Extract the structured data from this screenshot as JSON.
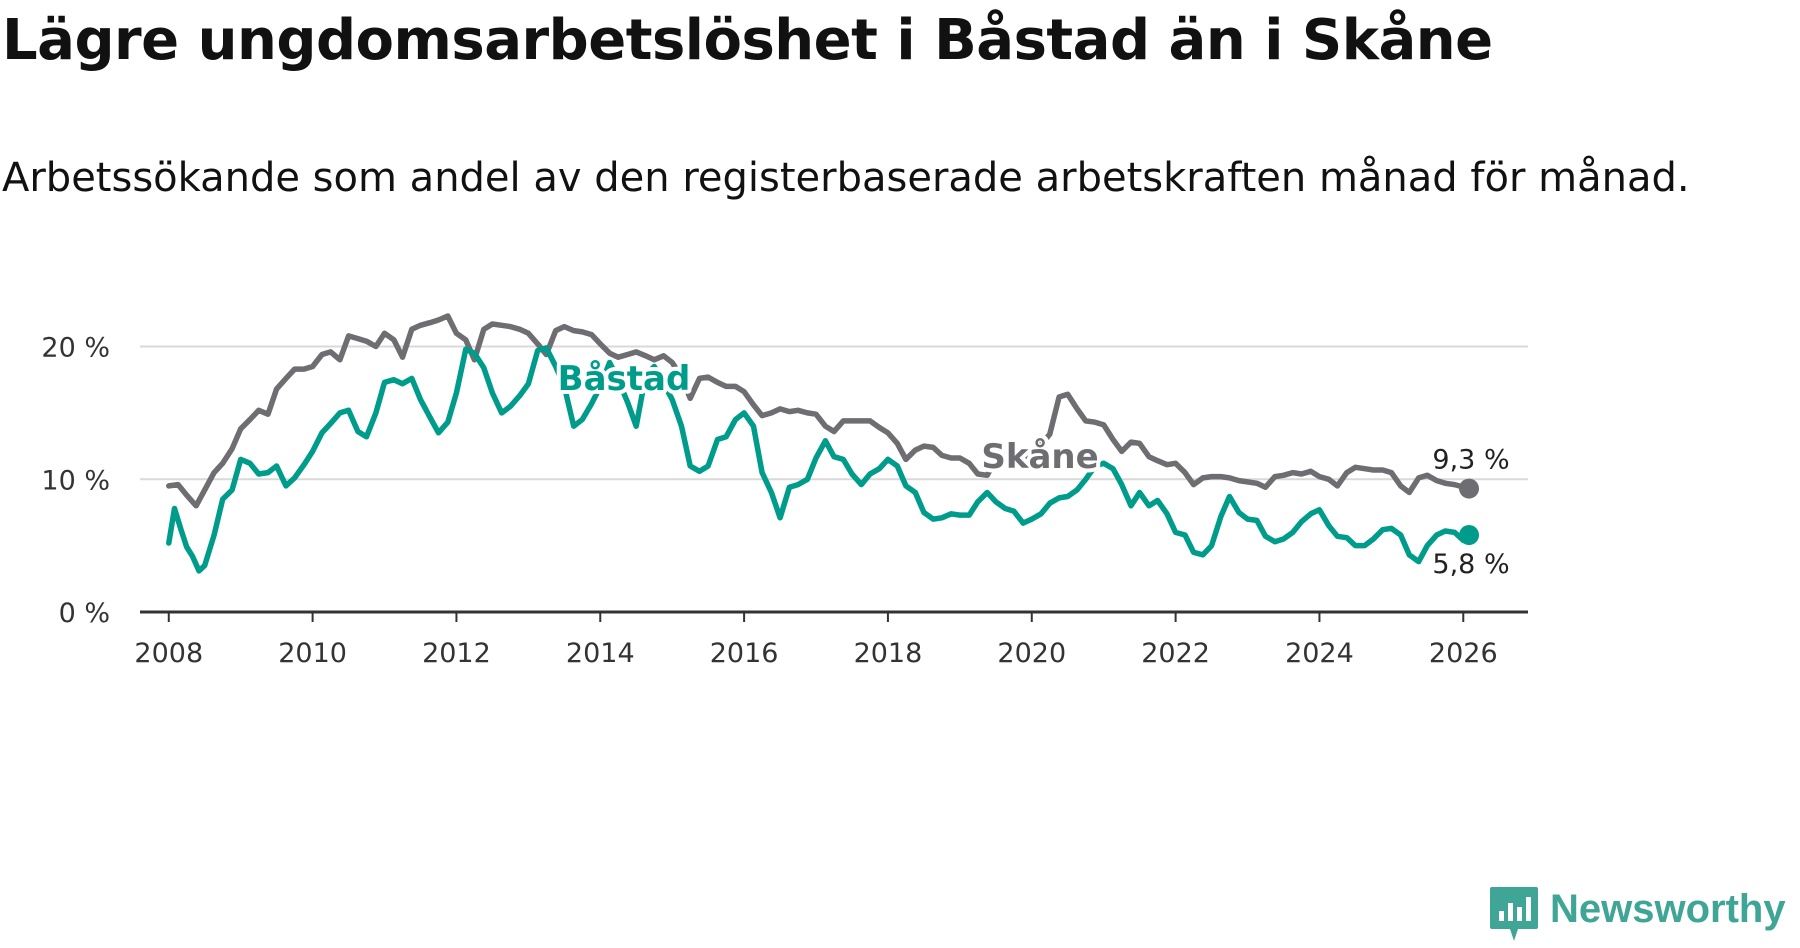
{
  "title": "Lägre ungdomsarbetslöshet i Båstad än i Skåne",
  "subtitle": "Arbetssökande som andel av den registerbaserade arbetskraften månad för månad.",
  "brand": {
    "name": "Newsworthy",
    "icon": "newsworthy-chart-icon",
    "color": "#3fa596"
  },
  "chart_data": {
    "type": "line",
    "title": "Lägre ungdomsarbetslöshet i Båstad än i Skåne",
    "xlabel": "",
    "ylabel": "",
    "xlim": [
      2007.6,
      2026.9
    ],
    "ylim": [
      0,
      22
    ],
    "x_ticks": [
      2008,
      2010,
      2012,
      2014,
      2016,
      2018,
      2020,
      2022,
      2024,
      2026
    ],
    "x_tick_labels": [
      "2008",
      "2010",
      "2012",
      "2014",
      "2016",
      "2018",
      "2020",
      "2022",
      "2024",
      "2026"
    ],
    "y_ticks": [
      0,
      10,
      20
    ],
    "y_tick_labels": [
      "0 %",
      "10 %",
      "20 %"
    ],
    "grid": true,
    "series": [
      {
        "name": "Skåne",
        "label": "Skåne",
        "color": "#6e6d72",
        "end_label": "9,3 %",
        "points": [
          [
            2008.0,
            9.5
          ],
          [
            2008.13,
            9.6
          ],
          [
            2008.25,
            8.8
          ],
          [
            2008.38,
            8.0
          ],
          [
            2008.5,
            9.2
          ],
          [
            2008.63,
            10.5
          ],
          [
            2008.75,
            11.2
          ],
          [
            2008.88,
            12.3
          ],
          [
            2009.0,
            13.8
          ],
          [
            2009.13,
            14.5
          ],
          [
            2009.25,
            15.2
          ],
          [
            2009.38,
            14.9
          ],
          [
            2009.5,
            16.8
          ],
          [
            2009.63,
            17.6
          ],
          [
            2009.75,
            18.3
          ],
          [
            2009.88,
            18.3
          ],
          [
            2010.0,
            18.5
          ],
          [
            2010.13,
            19.4
          ],
          [
            2010.25,
            19.6
          ],
          [
            2010.38,
            19.0
          ],
          [
            2010.5,
            20.8
          ],
          [
            2010.63,
            20.6
          ],
          [
            2010.75,
            20.4
          ],
          [
            2010.88,
            20.0
          ],
          [
            2011.0,
            21.0
          ],
          [
            2011.13,
            20.5
          ],
          [
            2011.25,
            19.2
          ],
          [
            2011.38,
            21.3
          ],
          [
            2011.5,
            21.6
          ],
          [
            2011.63,
            21.8
          ],
          [
            2011.75,
            22.0
          ],
          [
            2011.88,
            22.3
          ],
          [
            2012.0,
            21.0
          ],
          [
            2012.13,
            20.5
          ],
          [
            2012.25,
            19.0
          ],
          [
            2012.38,
            21.3
          ],
          [
            2012.5,
            21.7
          ],
          [
            2012.63,
            21.6
          ],
          [
            2012.75,
            21.5
          ],
          [
            2012.88,
            21.3
          ],
          [
            2013.0,
            21.0
          ],
          [
            2013.13,
            20.2
          ],
          [
            2013.25,
            19.4
          ],
          [
            2013.38,
            21.2
          ],
          [
            2013.5,
            21.5
          ],
          [
            2013.63,
            21.2
          ],
          [
            2013.75,
            21.1
          ],
          [
            2013.88,
            20.9
          ],
          [
            2014.0,
            20.2
          ],
          [
            2014.13,
            19.5
          ],
          [
            2014.25,
            19.2
          ],
          [
            2014.38,
            19.4
          ],
          [
            2014.5,
            19.6
          ],
          [
            2014.63,
            19.3
          ],
          [
            2014.75,
            19.0
          ],
          [
            2014.88,
            19.3
          ],
          [
            2015.0,
            18.8
          ],
          [
            2015.13,
            17.7
          ],
          [
            2015.25,
            16.1
          ],
          [
            2015.38,
            17.6
          ],
          [
            2015.5,
            17.7
          ],
          [
            2015.63,
            17.3
          ],
          [
            2015.75,
            17.0
          ],
          [
            2015.88,
            17.0
          ],
          [
            2016.0,
            16.6
          ],
          [
            2016.13,
            15.6
          ],
          [
            2016.25,
            14.8
          ],
          [
            2016.38,
            15.0
          ],
          [
            2016.5,
            15.3
          ],
          [
            2016.63,
            15.1
          ],
          [
            2016.75,
            15.2
          ],
          [
            2016.88,
            15.0
          ],
          [
            2017.0,
            14.9
          ],
          [
            2017.13,
            14.0
          ],
          [
            2017.25,
            13.6
          ],
          [
            2017.38,
            14.4
          ],
          [
            2017.5,
            14.4
          ],
          [
            2017.63,
            14.4
          ],
          [
            2017.75,
            14.4
          ],
          [
            2017.88,
            13.9
          ],
          [
            2018.0,
            13.5
          ],
          [
            2018.13,
            12.7
          ],
          [
            2018.25,
            11.5
          ],
          [
            2018.38,
            12.2
          ],
          [
            2018.5,
            12.5
          ],
          [
            2018.63,
            12.4
          ],
          [
            2018.75,
            11.8
          ],
          [
            2018.88,
            11.6
          ],
          [
            2019.0,
            11.6
          ],
          [
            2019.13,
            11.2
          ],
          [
            2019.25,
            10.4
          ],
          [
            2019.38,
            10.3
          ],
          [
            2019.5,
            11.5
          ],
          [
            2019.63,
            11.8
          ],
          [
            2019.75,
            12.2
          ],
          [
            2019.88,
            11.6
          ],
          [
            2020.0,
            12.0
          ],
          [
            2020.13,
            12.6
          ],
          [
            2020.25,
            13.4
          ],
          [
            2020.38,
            16.2
          ],
          [
            2020.5,
            16.4
          ],
          [
            2020.63,
            15.3
          ],
          [
            2020.75,
            14.4
          ],
          [
            2020.88,
            14.3
          ],
          [
            2021.0,
            14.1
          ],
          [
            2021.13,
            13.0
          ],
          [
            2021.25,
            12.1
          ],
          [
            2021.38,
            12.8
          ],
          [
            2021.5,
            12.7
          ],
          [
            2021.63,
            11.7
          ],
          [
            2021.75,
            11.4
          ],
          [
            2021.88,
            11.1
          ],
          [
            2022.0,
            11.2
          ],
          [
            2022.13,
            10.5
          ],
          [
            2022.25,
            9.6
          ],
          [
            2022.38,
            10.1
          ],
          [
            2022.5,
            10.2
          ],
          [
            2022.63,
            10.2
          ],
          [
            2022.75,
            10.1
          ],
          [
            2022.88,
            9.9
          ],
          [
            2023.0,
            9.8
          ],
          [
            2023.13,
            9.7
          ],
          [
            2023.25,
            9.4
          ],
          [
            2023.38,
            10.2
          ],
          [
            2023.5,
            10.3
          ],
          [
            2023.63,
            10.5
          ],
          [
            2023.75,
            10.4
          ],
          [
            2023.88,
            10.6
          ],
          [
            2024.0,
            10.2
          ],
          [
            2024.13,
            10.0
          ],
          [
            2024.25,
            9.5
          ],
          [
            2024.38,
            10.5
          ],
          [
            2024.5,
            10.9
          ],
          [
            2024.63,
            10.8
          ],
          [
            2024.75,
            10.7
          ],
          [
            2024.88,
            10.7
          ],
          [
            2025.0,
            10.5
          ],
          [
            2025.13,
            9.5
          ],
          [
            2025.25,
            9.0
          ],
          [
            2025.38,
            10.1
          ],
          [
            2025.5,
            10.3
          ],
          [
            2025.63,
            9.9
          ],
          [
            2025.75,
            9.7
          ],
          [
            2025.88,
            9.6
          ],
          [
            2026.08,
            9.3
          ]
        ]
      },
      {
        "name": "Båstad",
        "label": "Båstad",
        "color": "#009c8b",
        "end_label": "5,8 %",
        "points": [
          [
            2008.0,
            5.2
          ],
          [
            2008.08,
            7.8
          ],
          [
            2008.17,
            6.2
          ],
          [
            2008.25,
            4.9
          ],
          [
            2008.33,
            4.2
          ],
          [
            2008.42,
            3.1
          ],
          [
            2008.5,
            3.5
          ],
          [
            2008.63,
            5.8
          ],
          [
            2008.75,
            8.5
          ],
          [
            2008.88,
            9.2
          ],
          [
            2009.0,
            11.5
          ],
          [
            2009.13,
            11.2
          ],
          [
            2009.25,
            10.4
          ],
          [
            2009.38,
            10.5
          ],
          [
            2009.5,
            11.0
          ],
          [
            2009.63,
            9.5
          ],
          [
            2009.75,
            10.1
          ],
          [
            2009.88,
            11.1
          ],
          [
            2010.0,
            12.1
          ],
          [
            2010.13,
            13.5
          ],
          [
            2010.25,
            14.2
          ],
          [
            2010.38,
            15.0
          ],
          [
            2010.5,
            15.2
          ],
          [
            2010.63,
            13.6
          ],
          [
            2010.75,
            13.2
          ],
          [
            2010.88,
            15.0
          ],
          [
            2011.0,
            17.3
          ],
          [
            2011.13,
            17.5
          ],
          [
            2011.25,
            17.2
          ],
          [
            2011.38,
            17.6
          ],
          [
            2011.5,
            16.0
          ],
          [
            2011.63,
            14.7
          ],
          [
            2011.75,
            13.5
          ],
          [
            2011.88,
            14.3
          ],
          [
            2012.0,
            16.5
          ],
          [
            2012.13,
            19.8
          ],
          [
            2012.25,
            19.5
          ],
          [
            2012.38,
            18.4
          ],
          [
            2012.5,
            16.5
          ],
          [
            2012.63,
            15.0
          ],
          [
            2012.75,
            15.5
          ],
          [
            2012.88,
            16.3
          ],
          [
            2013.0,
            17.2
          ],
          [
            2013.13,
            19.7
          ],
          [
            2013.25,
            19.9
          ],
          [
            2013.38,
            18.5
          ],
          [
            2013.5,
            17.0
          ],
          [
            2013.63,
            14.0
          ],
          [
            2013.75,
            14.5
          ],
          [
            2013.88,
            15.7
          ],
          [
            2014.0,
            17.0
          ],
          [
            2014.13,
            18.8
          ],
          [
            2014.25,
            17.5
          ],
          [
            2014.38,
            15.8
          ],
          [
            2014.5,
            14.0
          ],
          [
            2014.63,
            17.8
          ],
          [
            2014.75,
            18.5
          ],
          [
            2014.88,
            17.2
          ],
          [
            2015.0,
            16.0
          ],
          [
            2015.13,
            14.0
          ],
          [
            2015.25,
            11.0
          ],
          [
            2015.38,
            10.6
          ],
          [
            2015.5,
            11.0
          ],
          [
            2015.63,
            13.0
          ],
          [
            2015.75,
            13.2
          ],
          [
            2015.88,
            14.5
          ],
          [
            2016.0,
            15.0
          ],
          [
            2016.13,
            14.0
          ],
          [
            2016.25,
            10.5
          ],
          [
            2016.38,
            9.0
          ],
          [
            2016.5,
            7.1
          ],
          [
            2016.63,
            9.4
          ],
          [
            2016.75,
            9.6
          ],
          [
            2016.88,
            10.0
          ],
          [
            2017.0,
            11.6
          ],
          [
            2017.13,
            12.9
          ],
          [
            2017.25,
            11.7
          ],
          [
            2017.38,
            11.5
          ],
          [
            2017.5,
            10.4
          ],
          [
            2017.63,
            9.6
          ],
          [
            2017.75,
            10.4
          ],
          [
            2017.88,
            10.8
          ],
          [
            2018.0,
            11.5
          ],
          [
            2018.13,
            11.0
          ],
          [
            2018.25,
            9.5
          ],
          [
            2018.38,
            9.0
          ],
          [
            2018.5,
            7.5
          ],
          [
            2018.63,
            7.0
          ],
          [
            2018.75,
            7.1
          ],
          [
            2018.88,
            7.4
          ],
          [
            2019.0,
            7.3
          ],
          [
            2019.13,
            7.3
          ],
          [
            2019.25,
            8.3
          ],
          [
            2019.38,
            9.0
          ],
          [
            2019.5,
            8.3
          ],
          [
            2019.63,
            7.8
          ],
          [
            2019.75,
            7.6
          ],
          [
            2019.88,
            6.7
          ],
          [
            2020.0,
            7.0
          ],
          [
            2020.13,
            7.4
          ],
          [
            2020.25,
            8.2
          ],
          [
            2020.38,
            8.6
          ],
          [
            2020.5,
            8.7
          ],
          [
            2020.63,
            9.2
          ],
          [
            2020.75,
            10.0
          ],
          [
            2020.88,
            11.0
          ],
          [
            2021.0,
            11.2
          ],
          [
            2021.13,
            10.8
          ],
          [
            2021.25,
            9.6
          ],
          [
            2021.38,
            8.0
          ],
          [
            2021.5,
            9.0
          ],
          [
            2021.63,
            8.0
          ],
          [
            2021.75,
            8.4
          ],
          [
            2021.88,
            7.4
          ],
          [
            2022.0,
            6.0
          ],
          [
            2022.13,
            5.8
          ],
          [
            2022.25,
            4.5
          ],
          [
            2022.38,
            4.3
          ],
          [
            2022.5,
            5.0
          ],
          [
            2022.63,
            7.2
          ],
          [
            2022.75,
            8.7
          ],
          [
            2022.88,
            7.5
          ],
          [
            2023.0,
            7.0
          ],
          [
            2023.13,
            6.9
          ],
          [
            2023.25,
            5.7
          ],
          [
            2023.38,
            5.3
          ],
          [
            2023.5,
            5.5
          ],
          [
            2023.63,
            6.0
          ],
          [
            2023.75,
            6.8
          ],
          [
            2023.88,
            7.4
          ],
          [
            2024.0,
            7.7
          ],
          [
            2024.13,
            6.5
          ],
          [
            2024.25,
            5.7
          ],
          [
            2024.38,
            5.6
          ],
          [
            2024.5,
            5.0
          ],
          [
            2024.63,
            5.0
          ],
          [
            2024.75,
            5.5
          ],
          [
            2024.88,
            6.2
          ],
          [
            2025.0,
            6.3
          ],
          [
            2025.13,
            5.8
          ],
          [
            2025.25,
            4.3
          ],
          [
            2025.38,
            3.8
          ],
          [
            2025.5,
            5.0
          ],
          [
            2025.63,
            5.8
          ],
          [
            2025.75,
            6.1
          ],
          [
            2025.88,
            6.0
          ],
          [
            2026.0,
            5.4
          ],
          [
            2026.08,
            5.8
          ]
        ]
      }
    ]
  }
}
